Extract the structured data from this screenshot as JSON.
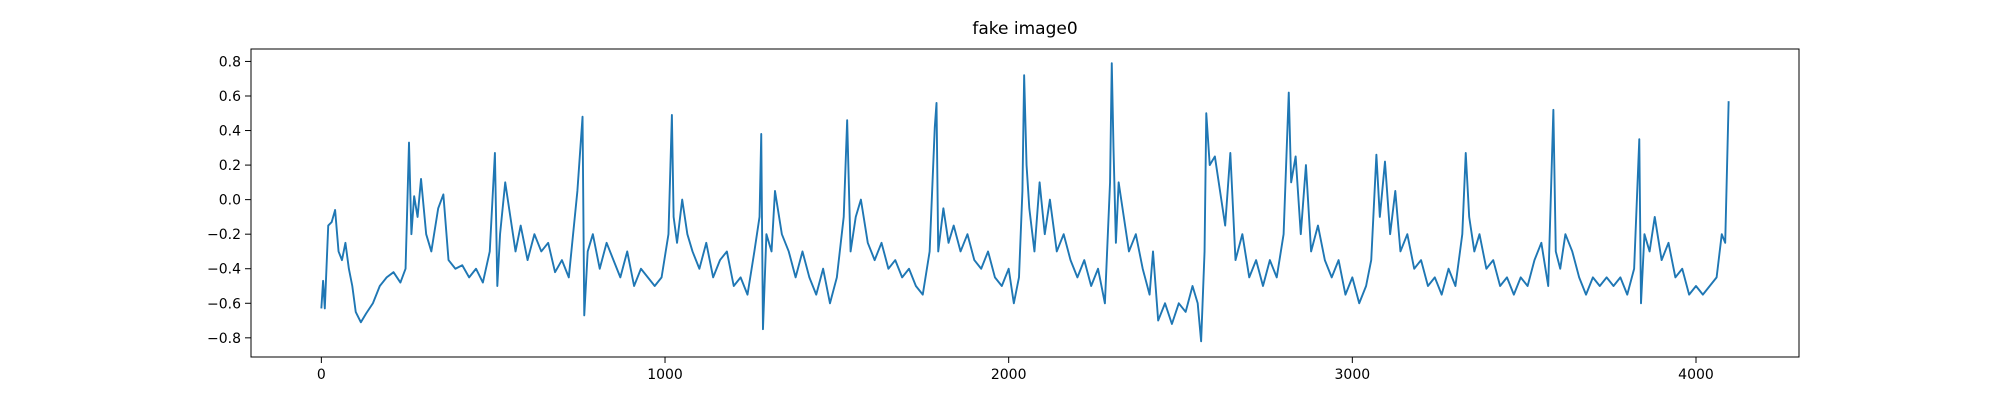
{
  "chart_data": {
    "type": "line",
    "title": "fake image0",
    "color": "#1f77b4",
    "x": [
      0,
      5,
      10,
      20,
      30,
      40,
      50,
      60,
      70,
      80,
      90,
      100,
      115,
      130,
      150,
      170,
      190,
      210,
      230,
      245,
      255,
      262,
      270,
      280,
      290,
      305,
      320,
      340,
      355,
      370,
      390,
      410,
      430,
      450,
      470,
      490,
      505,
      512,
      520,
      535,
      550,
      565,
      580,
      600,
      620,
      640,
      660,
      680,
      700,
      720,
      745,
      760,
      765,
      775,
      790,
      810,
      830,
      850,
      870,
      890,
      910,
      930,
      950,
      970,
      990,
      1010,
      1020,
      1025,
      1035,
      1050,
      1065,
      1080,
      1100,
      1120,
      1140,
      1160,
      1180,
      1200,
      1220,
      1240,
      1260,
      1275,
      1280,
      1285,
      1295,
      1310,
      1320,
      1340,
      1360,
      1380,
      1400,
      1420,
      1440,
      1460,
      1480,
      1500,
      1520,
      1530,
      1540,
      1555,
      1570,
      1590,
      1610,
      1630,
      1650,
      1670,
      1690,
      1710,
      1730,
      1750,
      1770,
      1785,
      1790,
      1795,
      1810,
      1825,
      1840,
      1860,
      1880,
      1900,
      1920,
      1940,
      1960,
      1980,
      2000,
      2015,
      2030,
      2040,
      2045,
      2052,
      2060,
      2075,
      2090,
      2105,
      2120,
      2140,
      2160,
      2180,
      2200,
      2220,
      2240,
      2260,
      2280,
      2295,
      2300,
      2305,
      2312,
      2320,
      2335,
      2350,
      2370,
      2390,
      2410,
      2420,
      2435,
      2455,
      2475,
      2495,
      2515,
      2535,
      2550,
      2560,
      2570,
      2575,
      2585,
      2600,
      2615,
      2630,
      2645,
      2660,
      2680,
      2700,
      2720,
      2740,
      2760,
      2780,
      2800,
      2815,
      2822,
      2835,
      2850,
      2865,
      2880,
      2900,
      2920,
      2940,
      2960,
      2980,
      3000,
      3020,
      3040,
      3055,
      3070,
      3080,
      3095,
      3110,
      3125,
      3140,
      3160,
      3180,
      3200,
      3220,
      3240,
      3260,
      3280,
      3300,
      3320,
      3330,
      3340,
      3355,
      3370,
      3390,
      3410,
      3430,
      3450,
      3470,
      3490,
      3510,
      3530,
      3550,
      3570,
      3585,
      3592,
      3605,
      3620,
      3640,
      3660,
      3680,
      3700,
      3720,
      3740,
      3760,
      3780,
      3800,
      3820,
      3835,
      3840,
      3850,
      3865,
      3880,
      3900,
      3920,
      3940,
      3960,
      3980,
      4000,
      4020,
      4040,
      4060,
      4075,
      4085,
      4095
    ],
    "values": [
      -0.63,
      -0.47,
      -0.63,
      -0.15,
      -0.13,
      -0.06,
      -0.3,
      -0.35,
      -0.25,
      -0.4,
      -0.5,
      -0.65,
      -0.71,
      -0.66,
      -0.6,
      -0.5,
      -0.45,
      -0.42,
      -0.48,
      -0.4,
      0.33,
      -0.2,
      0.02,
      -0.1,
      0.12,
      -0.2,
      -0.3,
      -0.05,
      0.03,
      -0.35,
      -0.4,
      -0.38,
      -0.45,
      -0.4,
      -0.48,
      -0.3,
      0.27,
      -0.5,
      -0.2,
      0.1,
      -0.1,
      -0.3,
      -0.15,
      -0.35,
      -0.2,
      -0.3,
      -0.25,
      -0.42,
      -0.35,
      -0.45,
      0.05,
      0.48,
      -0.67,
      -0.3,
      -0.2,
      -0.4,
      -0.25,
      -0.35,
      -0.45,
      -0.3,
      -0.5,
      -0.4,
      -0.45,
      -0.5,
      -0.45,
      -0.2,
      0.49,
      -0.1,
      -0.25,
      0.0,
      -0.2,
      -0.3,
      -0.4,
      -0.25,
      -0.45,
      -0.35,
      -0.3,
      -0.5,
      -0.45,
      -0.55,
      -0.3,
      -0.1,
      0.38,
      -0.75,
      -0.2,
      -0.3,
      0.05,
      -0.2,
      -0.3,
      -0.45,
      -0.3,
      -0.45,
      -0.55,
      -0.4,
      -0.6,
      -0.45,
      -0.1,
      0.46,
      -0.3,
      -0.1,
      0.0,
      -0.25,
      -0.35,
      -0.25,
      -0.4,
      -0.35,
      -0.45,
      -0.4,
      -0.5,
      -0.55,
      -0.3,
      0.42,
      0.56,
      -0.3,
      -0.05,
      -0.25,
      -0.15,
      -0.3,
      -0.2,
      -0.35,
      -0.4,
      -0.3,
      -0.45,
      -0.5,
      -0.4,
      -0.6,
      -0.45,
      0.05,
      0.72,
      0.2,
      -0.05,
      -0.3,
      0.1,
      -0.2,
      0.0,
      -0.3,
      -0.2,
      -0.35,
      -0.45,
      -0.35,
      -0.5,
      -0.4,
      -0.6,
      0.1,
      0.79,
      0.3,
      -0.25,
      0.1,
      -0.1,
      -0.3,
      -0.2,
      -0.4,
      -0.55,
      -0.3,
      -0.7,
      -0.6,
      -0.72,
      -0.6,
      -0.65,
      -0.5,
      -0.6,
      -0.82,
      -0.3,
      0.5,
      0.2,
      0.25,
      0.05,
      -0.15,
      0.27,
      -0.35,
      -0.2,
      -0.45,
      -0.35,
      -0.5,
      -0.35,
      -0.45,
      -0.2,
      0.62,
      0.1,
      0.25,
      -0.2,
      0.2,
      -0.3,
      -0.15,
      -0.35,
      -0.45,
      -0.35,
      -0.55,
      -0.45,
      -0.6,
      -0.5,
      -0.35,
      0.26,
      -0.1,
      0.22,
      -0.2,
      0.05,
      -0.3,
      -0.2,
      -0.4,
      -0.35,
      -0.5,
      -0.45,
      -0.55,
      -0.4,
      -0.5,
      -0.2,
      0.27,
      -0.1,
      -0.3,
      -0.2,
      -0.4,
      -0.35,
      -0.5,
      -0.45,
      -0.55,
      -0.45,
      -0.5,
      -0.35,
      -0.25,
      -0.5,
      0.52,
      -0.3,
      -0.4,
      -0.2,
      -0.3,
      -0.45,
      -0.55,
      -0.45,
      -0.5,
      -0.45,
      -0.5,
      -0.45,
      -0.55,
      -0.4,
      0.35,
      -0.6,
      -0.2,
      -0.3,
      -0.1,
      -0.35,
      -0.25,
      -0.45,
      -0.4,
      -0.55,
      -0.5,
      -0.55,
      -0.5,
      -0.45,
      -0.2,
      -0.25,
      0.57
    ],
    "xlim": [
      -204.75,
      4299.75
    ],
    "ylim": [
      -0.911,
      0.872
    ],
    "xticks": [
      0,
      1000,
      2000,
      3000,
      4000
    ],
    "yticks": [
      {
        "value": -0.8,
        "label": "−0.8"
      },
      {
        "value": -0.6,
        "label": "−0.6"
      },
      {
        "value": -0.4,
        "label": "−0.4"
      },
      {
        "value": -0.2,
        "label": "−0.2"
      },
      {
        "value": 0,
        "label": "0.0"
      },
      0.2,
      0.4,
      0.6,
      0.8
    ]
  }
}
